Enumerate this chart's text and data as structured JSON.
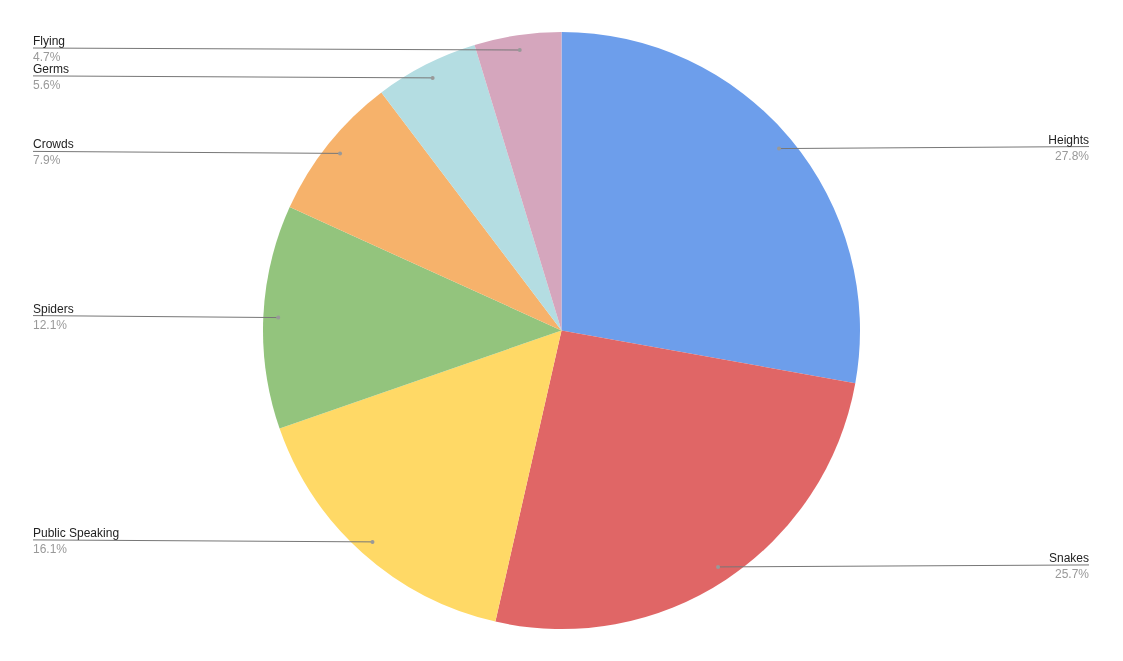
{
  "chart_data": {
    "type": "pie",
    "categories": [
      "Heights",
      "Snakes",
      "Public Speaking",
      "Spiders",
      "Crowds",
      "Germs",
      "Flying"
    ],
    "values": [
      27.8,
      25.7,
      16.1,
      12.1,
      7.9,
      5.6,
      4.7
    ],
    "value_labels": [
      "27.8%",
      "25.7%",
      "16.1%",
      "12.1%",
      "7.9%",
      "5.6%",
      "4.7%"
    ],
    "colors": [
      "#6d9eeb",
      "#e06666",
      "#ffd966",
      "#93c47d",
      "#f6b26b",
      "#b4dde2",
      "#d5a6bd"
    ],
    "legend": false
  }
}
